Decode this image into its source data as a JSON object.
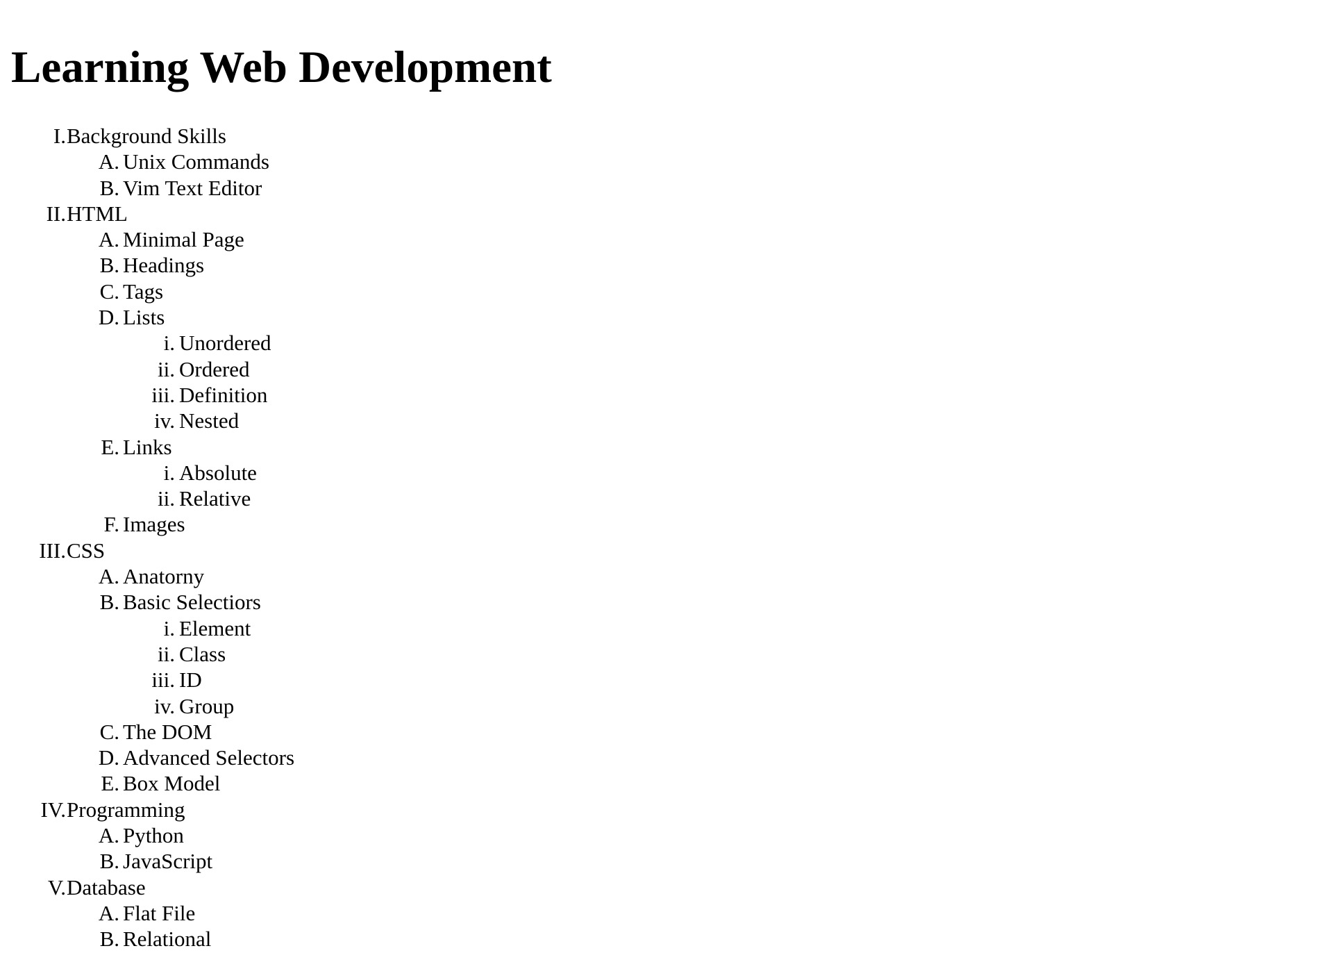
{
  "title": "Learning Web Development",
  "outline": [
    {
      "level": 1,
      "marker": "I.",
      "label": "Background Skills"
    },
    {
      "level": 2,
      "marker": "A.",
      "label": "Unix Commands"
    },
    {
      "level": 2,
      "marker": "B.",
      "label": "Vim Text Editor"
    },
    {
      "level": 1,
      "marker": "II.",
      "label": "HTML"
    },
    {
      "level": 2,
      "marker": "A.",
      "label": "Minimal Page"
    },
    {
      "level": 2,
      "marker": "B.",
      "label": "Headings"
    },
    {
      "level": 2,
      "marker": "C.",
      "label": "Tags"
    },
    {
      "level": 2,
      "marker": "D.",
      "label": "Lists"
    },
    {
      "level": 3,
      "marker": "i.",
      "label": "Unordered"
    },
    {
      "level": 3,
      "marker": "ii.",
      "label": "Ordered"
    },
    {
      "level": 3,
      "marker": "iii.",
      "label": "Definition"
    },
    {
      "level": 3,
      "marker": "iv.",
      "label": "Nested"
    },
    {
      "level": 2,
      "marker": "E.",
      "label": "Links"
    },
    {
      "level": 3,
      "marker": "i.",
      "label": "Absolute"
    },
    {
      "level": 3,
      "marker": "ii.",
      "label": "Relative"
    },
    {
      "level": 2,
      "marker": "F.",
      "label": "Images"
    },
    {
      "level": 1,
      "marker": "III.",
      "label": "CSS"
    },
    {
      "level": 2,
      "marker": "A.",
      "label": "Anatorny"
    },
    {
      "level": 2,
      "marker": "B.",
      "label": "Basic Selectiors"
    },
    {
      "level": 3,
      "marker": "i.",
      "label": "Element"
    },
    {
      "level": 3,
      "marker": "ii.",
      "label": "Class"
    },
    {
      "level": 3,
      "marker": "iii.",
      "label": "ID"
    },
    {
      "level": 3,
      "marker": "iv.",
      "label": "Group"
    },
    {
      "level": 2,
      "marker": "C.",
      "label": "The DOM"
    },
    {
      "level": 2,
      "marker": "D.",
      "label": "Advanced Selectors"
    },
    {
      "level": 2,
      "marker": "E.",
      "label": "Box Model"
    },
    {
      "level": 1,
      "marker": "IV.",
      "label": "Programming"
    },
    {
      "level": 2,
      "marker": "A.",
      "label": "Python"
    },
    {
      "level": 2,
      "marker": "B.",
      "label": "JavaScript"
    },
    {
      "level": 1,
      "marker": "V.",
      "label": "Database"
    },
    {
      "level": 2,
      "marker": "A.",
      "label": "Flat File"
    },
    {
      "level": 2,
      "marker": "B.",
      "label": "Relational"
    }
  ]
}
